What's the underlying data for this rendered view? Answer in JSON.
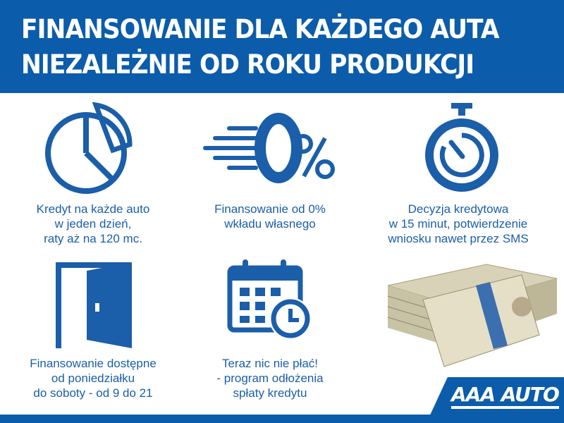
{
  "header": {
    "line1": "FINANSOWANIE DLA KAŻDEGO AUTA",
    "line2": "NIEZALEŻNIE OD ROKU PRODUKCJI"
  },
  "features": [
    {
      "icon": "pie-chart-icon",
      "lines": [
        "Kredyt na każde auto",
        "w jeden dzień,",
        "raty aż na 120 mc."
      ]
    },
    {
      "icon": "zero-percent-icon",
      "lines": [
        "Finansowanie od 0%",
        "wkładu własnego"
      ]
    },
    {
      "icon": "stopwatch-icon",
      "lines": [
        "Decyzja kredytowa",
        "w 15 minut, potwierdzenie",
        "wniosku nawet przez SMS"
      ]
    },
    {
      "icon": "open-door-icon",
      "lines": [
        "Finansowanie dostępne",
        "od poniedziałku",
        "do soboty - od 9 do 21"
      ]
    },
    {
      "icon": "calendar-clock-icon",
      "lines": [
        "Teraz nic nie płać!",
        "- program odłożenia",
        "spłaty kredytu"
      ]
    }
  ],
  "logo": {
    "text": "AAA AUTO"
  },
  "colors": {
    "brand": "#0b5cab",
    "text": "#1b5ea9"
  }
}
